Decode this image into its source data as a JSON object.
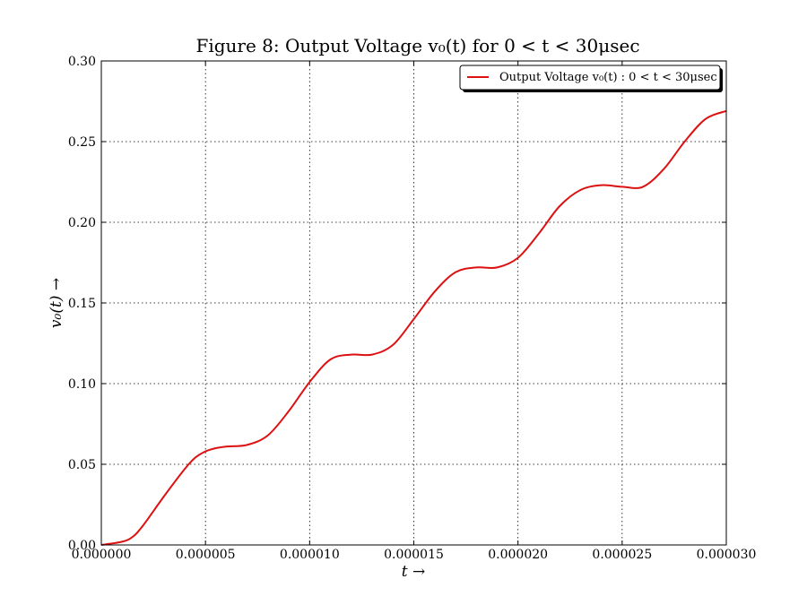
{
  "chart_data": {
    "type": "line",
    "title": "Figure 8:  Output Voltage v₀(t)  for 0 < t < 30μsec",
    "xlabel": "t →",
    "ylabel": "v₀(t) →",
    "xlim": [
      0,
      3e-05
    ],
    "ylim": [
      0,
      0.3
    ],
    "x_ticks": [
      "0.000000",
      "0.000005",
      "0.000010",
      "0.000015",
      "0.000020",
      "0.000025",
      "0.000030"
    ],
    "y_ticks": [
      "0.00",
      "0.05",
      "0.10",
      "0.15",
      "0.20",
      "0.25",
      "0.30"
    ],
    "grid": true,
    "legend": {
      "position": "top-right",
      "entries": [
        "Output Voltage v₀(t) : 0 < t < 30μsec"
      ]
    },
    "series": [
      {
        "name": "Output Voltage v₀(t) : 0 < t < 30μsec",
        "color": "#dd1111",
        "x": [
          0,
          1e-06,
          1.5e-06,
          2e-06,
          3e-06,
          4e-06,
          4.5e-06,
          5e-06,
          5.5e-06,
          6e-06,
          7e-06,
          8e-06,
          9e-06,
          1e-05,
          1.1e-05,
          1.2e-05,
          1.3e-05,
          1.4e-05,
          1.5e-05,
          1.6e-05,
          1.7e-05,
          1.8e-05,
          1.9e-05,
          2e-05,
          2.1e-05,
          2.2e-05,
          2.3e-05,
          2.4e-05,
          2.5e-05,
          2.6e-05,
          2.7e-05,
          2.8e-05,
          2.9e-05,
          3e-05
        ],
        "y": [
          0,
          0.002,
          0.005,
          0.012,
          0.03,
          0.047,
          0.054,
          0.058,
          0.06,
          0.061,
          0.062,
          0.068,
          0.083,
          0.101,
          0.115,
          0.118,
          0.118,
          0.124,
          0.14,
          0.157,
          0.169,
          0.172,
          0.172,
          0.178,
          0.193,
          0.21,
          0.22,
          0.223,
          0.222,
          0.222,
          0.233,
          0.25,
          0.264,
          0.269
        ]
      }
    ]
  }
}
